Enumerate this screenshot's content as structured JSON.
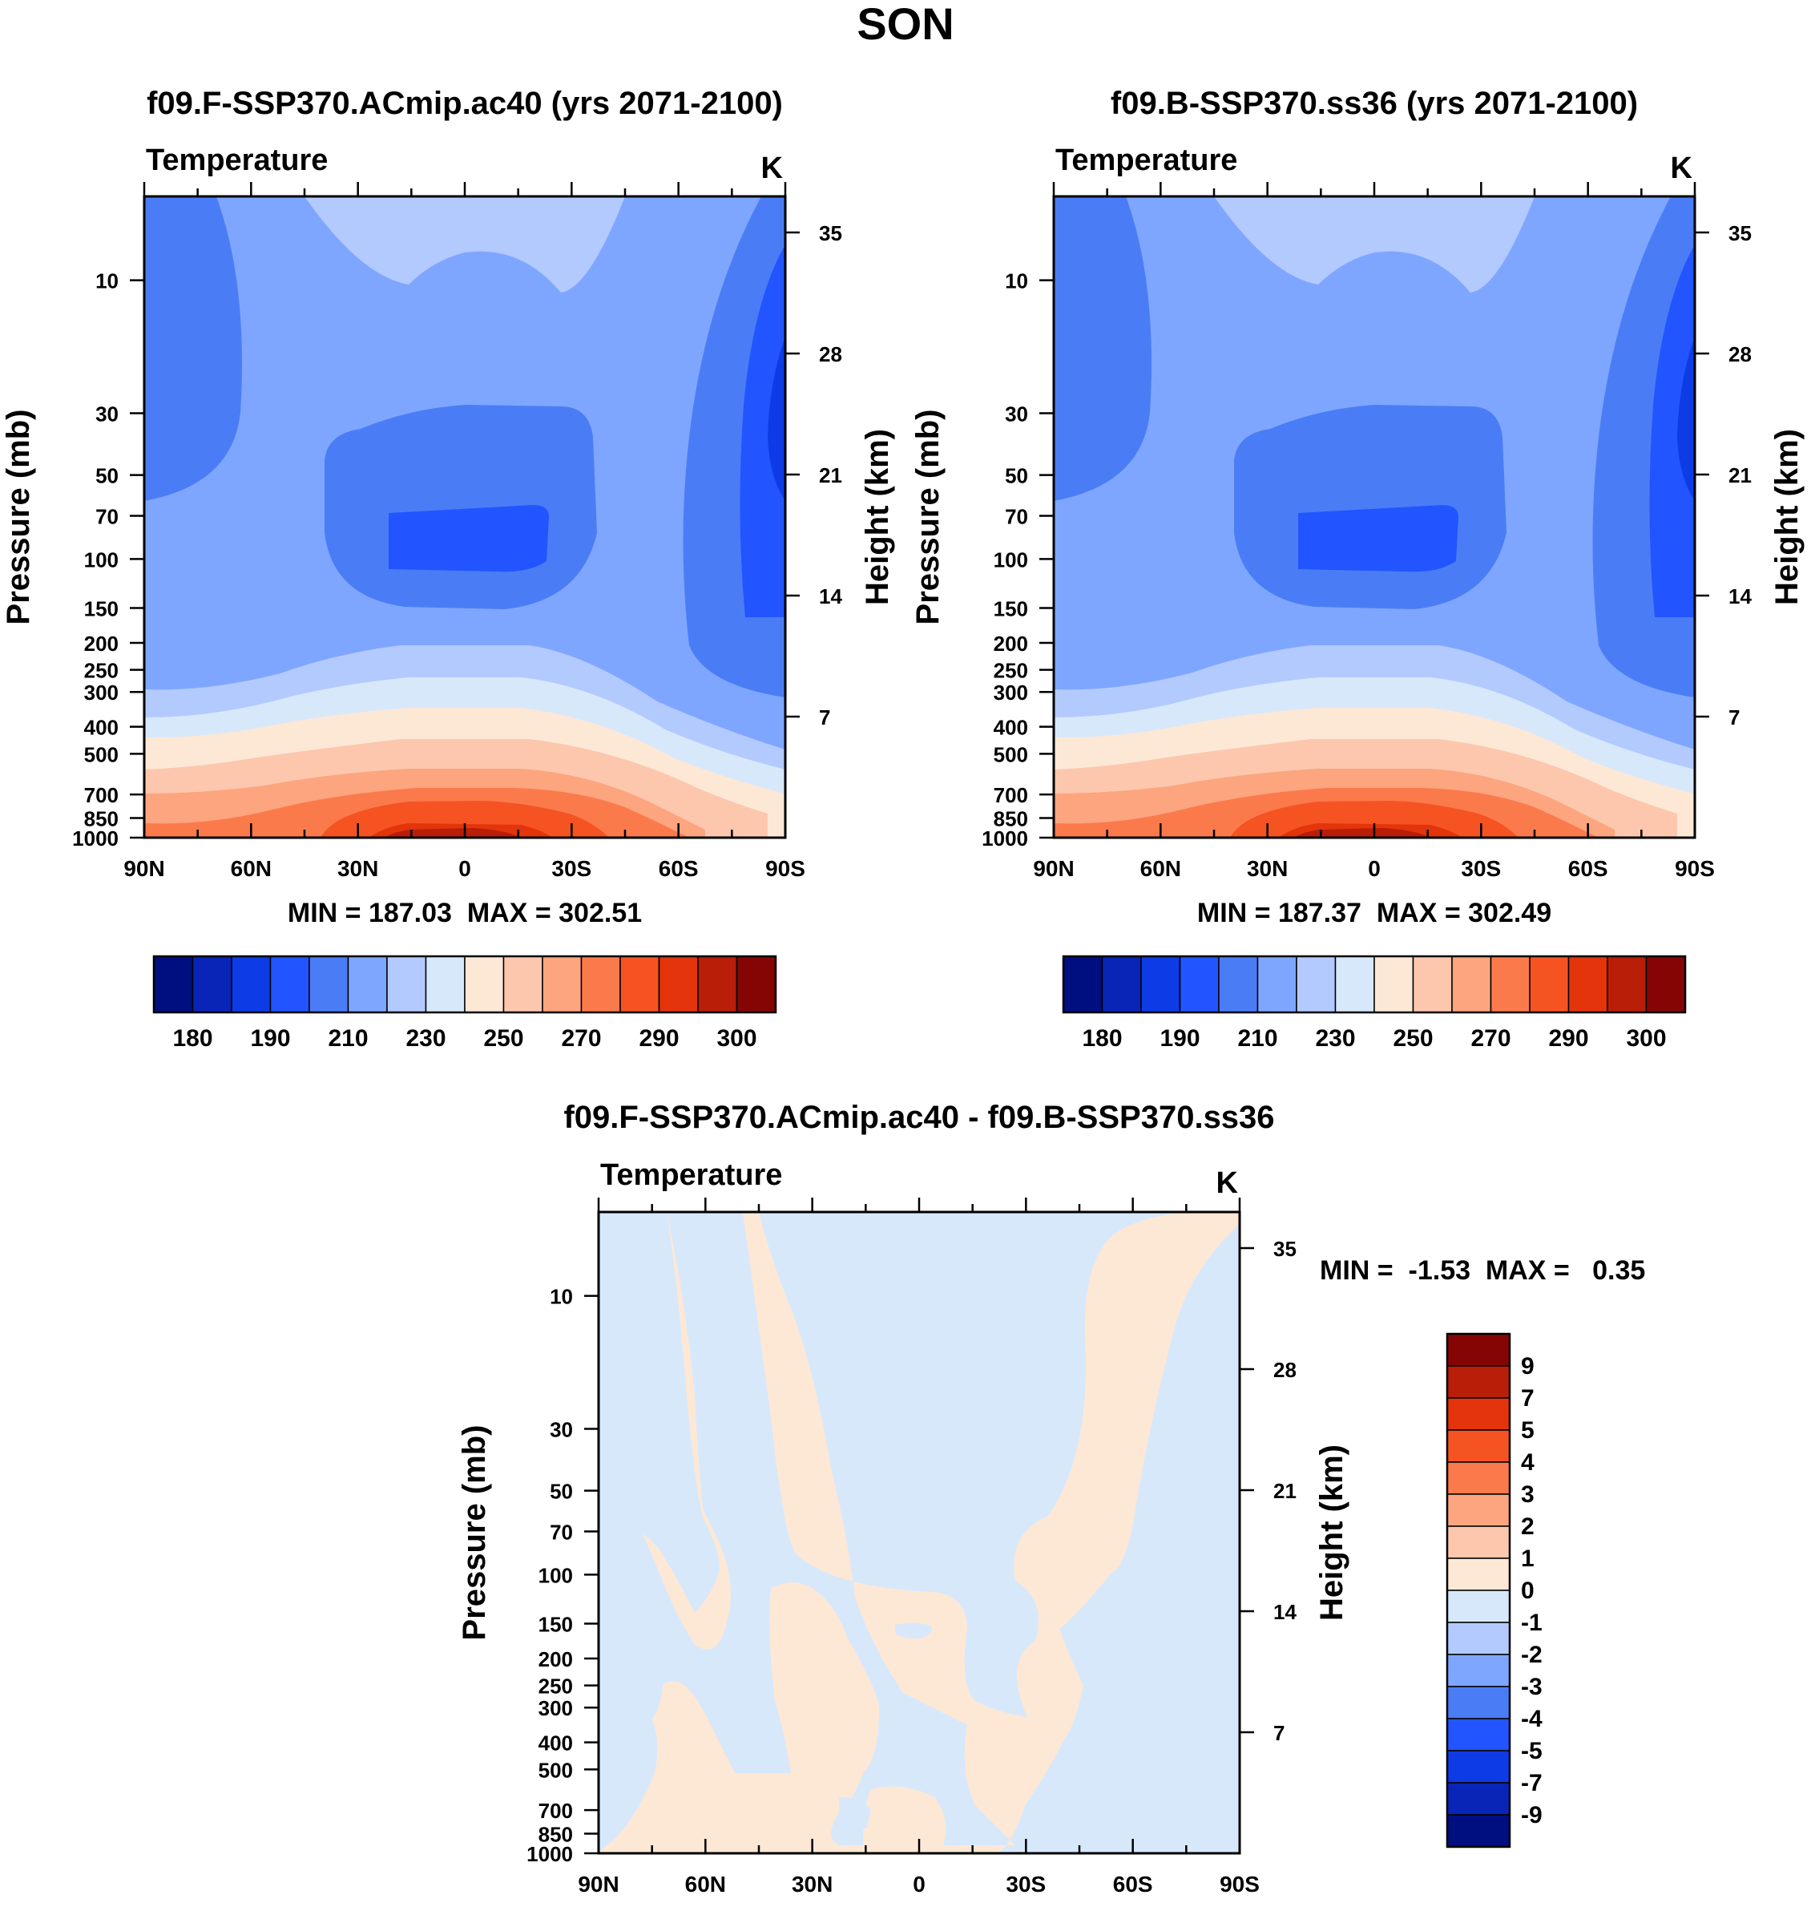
{
  "figure_title": "SON",
  "colors": {
    "abs_palette": [
      "#000f7f",
      "#0825b8",
      "#0d3be6",
      "#2255ff",
      "#4a7df5",
      "#7fa6ff",
      "#b3caff",
      "#d8e8fb",
      "#fde8d6",
      "#fdc7ae",
      "#fca57f",
      "#fb7a4c",
      "#f65322",
      "#e3340b",
      "#b81e08",
      "#850505"
    ],
    "diff_palette": [
      "#000f7f",
      "#0825b8",
      "#0d3be6",
      "#2255ff",
      "#4a7df5",
      "#7fa6ff",
      "#b3caff",
      "#d8e8fb",
      "#fde8d6",
      "#fdc7ae",
      "#fca57f",
      "#fb7a4c",
      "#f65322",
      "#e3340b",
      "#b81e08",
      "#850505"
    ]
  },
  "chart_data": [
    {
      "type": "contour",
      "panel": "a",
      "title": "f09.F-SSP370.ACmip.ac40 (yrs 2071-2100)",
      "left_string": "Temperature",
      "right_string": "K",
      "xlabel": "",
      "ylabel": "Pressure (mb)",
      "y2label": "Height (km)",
      "x_ticks": [
        "90N",
        "60N",
        "30N",
        "0",
        "30S",
        "60S",
        "90S"
      ],
      "y_ticks": [
        "10",
        "30",
        "50",
        "70",
        "100",
        "150",
        "200",
        "250",
        "300",
        "400",
        "500",
        "700",
        "850",
        "1000"
      ],
      "y2_ticks": [
        "35",
        "28",
        "21",
        "14",
        "7"
      ],
      "stats": "MIN = 187.03  MAX = 302.51",
      "min": 187.03,
      "max": 302.51,
      "colorbar_labels": [
        "180",
        "190",
        "210",
        "230",
        "250",
        "270",
        "290",
        "300"
      ]
    },
    {
      "type": "contour",
      "panel": "b",
      "title": "f09.B-SSP370.ss36 (yrs 2071-2100)",
      "left_string": "Temperature",
      "right_string": "K",
      "xlabel": "",
      "ylabel": "Pressure (mb)",
      "y2label": "Height (km)",
      "x_ticks": [
        "90N",
        "60N",
        "30N",
        "0",
        "30S",
        "60S",
        "90S"
      ],
      "y_ticks": [
        "10",
        "30",
        "50",
        "70",
        "100",
        "150",
        "200",
        "250",
        "300",
        "400",
        "500",
        "700",
        "850",
        "1000"
      ],
      "y2_ticks": [
        "35",
        "28",
        "21",
        "14",
        "7"
      ],
      "stats": "MIN = 187.37  MAX = 302.49",
      "min": 187.37,
      "max": 302.49,
      "colorbar_labels": [
        "180",
        "190",
        "210",
        "230",
        "250",
        "270",
        "290",
        "300"
      ]
    },
    {
      "type": "contour",
      "panel": "diff",
      "title": "f09.F-SSP370.ACmip.ac40 - f09.B-SSP370.ss36",
      "left_string": "Temperature",
      "right_string": "K",
      "xlabel": "",
      "ylabel": "Pressure (mb)",
      "y2label": "Height (km)",
      "x_ticks": [
        "90N",
        "60N",
        "30N",
        "0",
        "30S",
        "60S",
        "90S"
      ],
      "y_ticks": [
        "10",
        "30",
        "50",
        "70",
        "100",
        "150",
        "200",
        "250",
        "300",
        "400",
        "500",
        "700",
        "850",
        "1000"
      ],
      "y2_ticks": [
        "35",
        "28",
        "21",
        "14",
        "7"
      ],
      "stats": "MIN =  -1.53  MAX =   0.35",
      "min": -1.53,
      "max": 0.35,
      "colorbar_labels": [
        "9",
        "7",
        "5",
        "4",
        "3",
        "2",
        "1",
        "0",
        "-1",
        "-2",
        "-3",
        "-4",
        "-5",
        "-7",
        "-9"
      ]
    }
  ]
}
